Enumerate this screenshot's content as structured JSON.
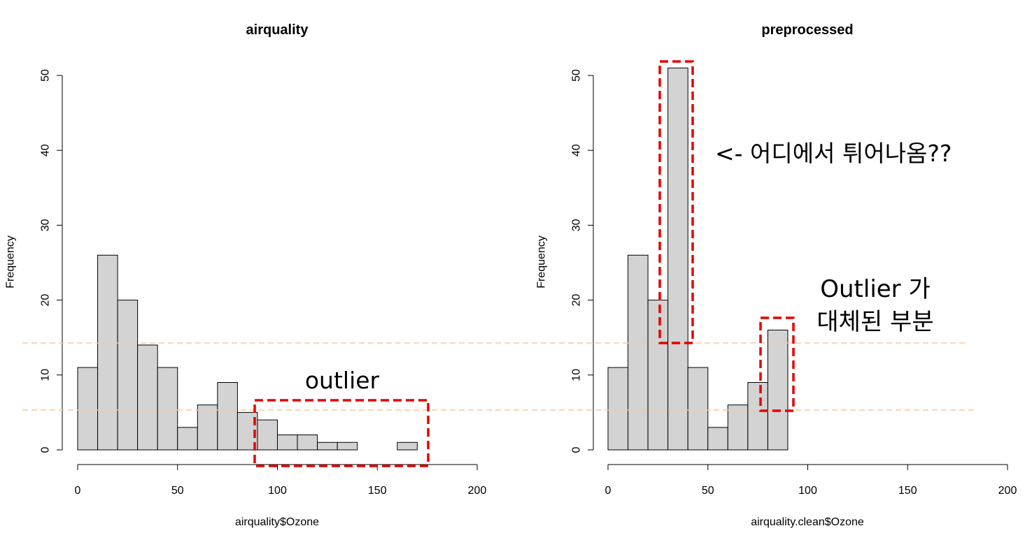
{
  "chart_data": [
    {
      "type": "bar",
      "title": "airquality",
      "xlabel": "airquality$Ozone",
      "ylabel": "Frequency",
      "xlim": [
        0,
        200
      ],
      "ylim": [
        0,
        50
      ],
      "x_ticks": [
        0,
        50,
        100,
        150,
        200
      ],
      "y_ticks": [
        0,
        10,
        20,
        30,
        40,
        50
      ],
      "bin_width": 10,
      "bins": [
        [
          0,
          10
        ],
        [
          10,
          20
        ],
        [
          20,
          30
        ],
        [
          30,
          40
        ],
        [
          40,
          50
        ],
        [
          50,
          60
        ],
        [
          60,
          70
        ],
        [
          70,
          80
        ],
        [
          80,
          90
        ],
        [
          90,
          100
        ],
        [
          100,
          110
        ],
        [
          110,
          120
        ],
        [
          120,
          130
        ],
        [
          130,
          140
        ],
        [
          140,
          150
        ],
        [
          150,
          160
        ],
        [
          160,
          170
        ]
      ],
      "values": [
        11,
        26,
        20,
        14,
        11,
        3,
        6,
        9,
        5,
        4,
        2,
        2,
        1,
        1,
        0,
        0,
        1
      ],
      "annotations": [
        {
          "text": "outlier"
        }
      ]
    },
    {
      "type": "bar",
      "title": "preprocessed",
      "xlabel": "airquality.clean$Ozone",
      "ylabel": "Frequency",
      "xlim": [
        0,
        200
      ],
      "ylim": [
        0,
        50
      ],
      "x_ticks": [
        0,
        50,
        100,
        150,
        200
      ],
      "y_ticks": [
        0,
        10,
        20,
        30,
        40,
        50
      ],
      "bin_width": 10,
      "bins": [
        [
          0,
          10
        ],
        [
          10,
          20
        ],
        [
          20,
          30
        ],
        [
          30,
          40
        ],
        [
          40,
          50
        ],
        [
          50,
          60
        ],
        [
          60,
          70
        ],
        [
          70,
          80
        ],
        [
          80,
          90
        ]
      ],
      "values": [
        11,
        26,
        20,
        51,
        11,
        3,
        6,
        9,
        16
      ],
      "annotations": [
        {
          "text": "<- 어디에서 튀어나옴??"
        },
        {
          "text_lines": [
            "Outlier 가",
            "대체된 부분"
          ]
        }
      ]
    }
  ],
  "colors": {
    "bar_fill": "#d3d3d3",
    "bar_stroke": "#000000",
    "highlight_box": "#e60000",
    "guide_line": "#f5c9a0"
  }
}
